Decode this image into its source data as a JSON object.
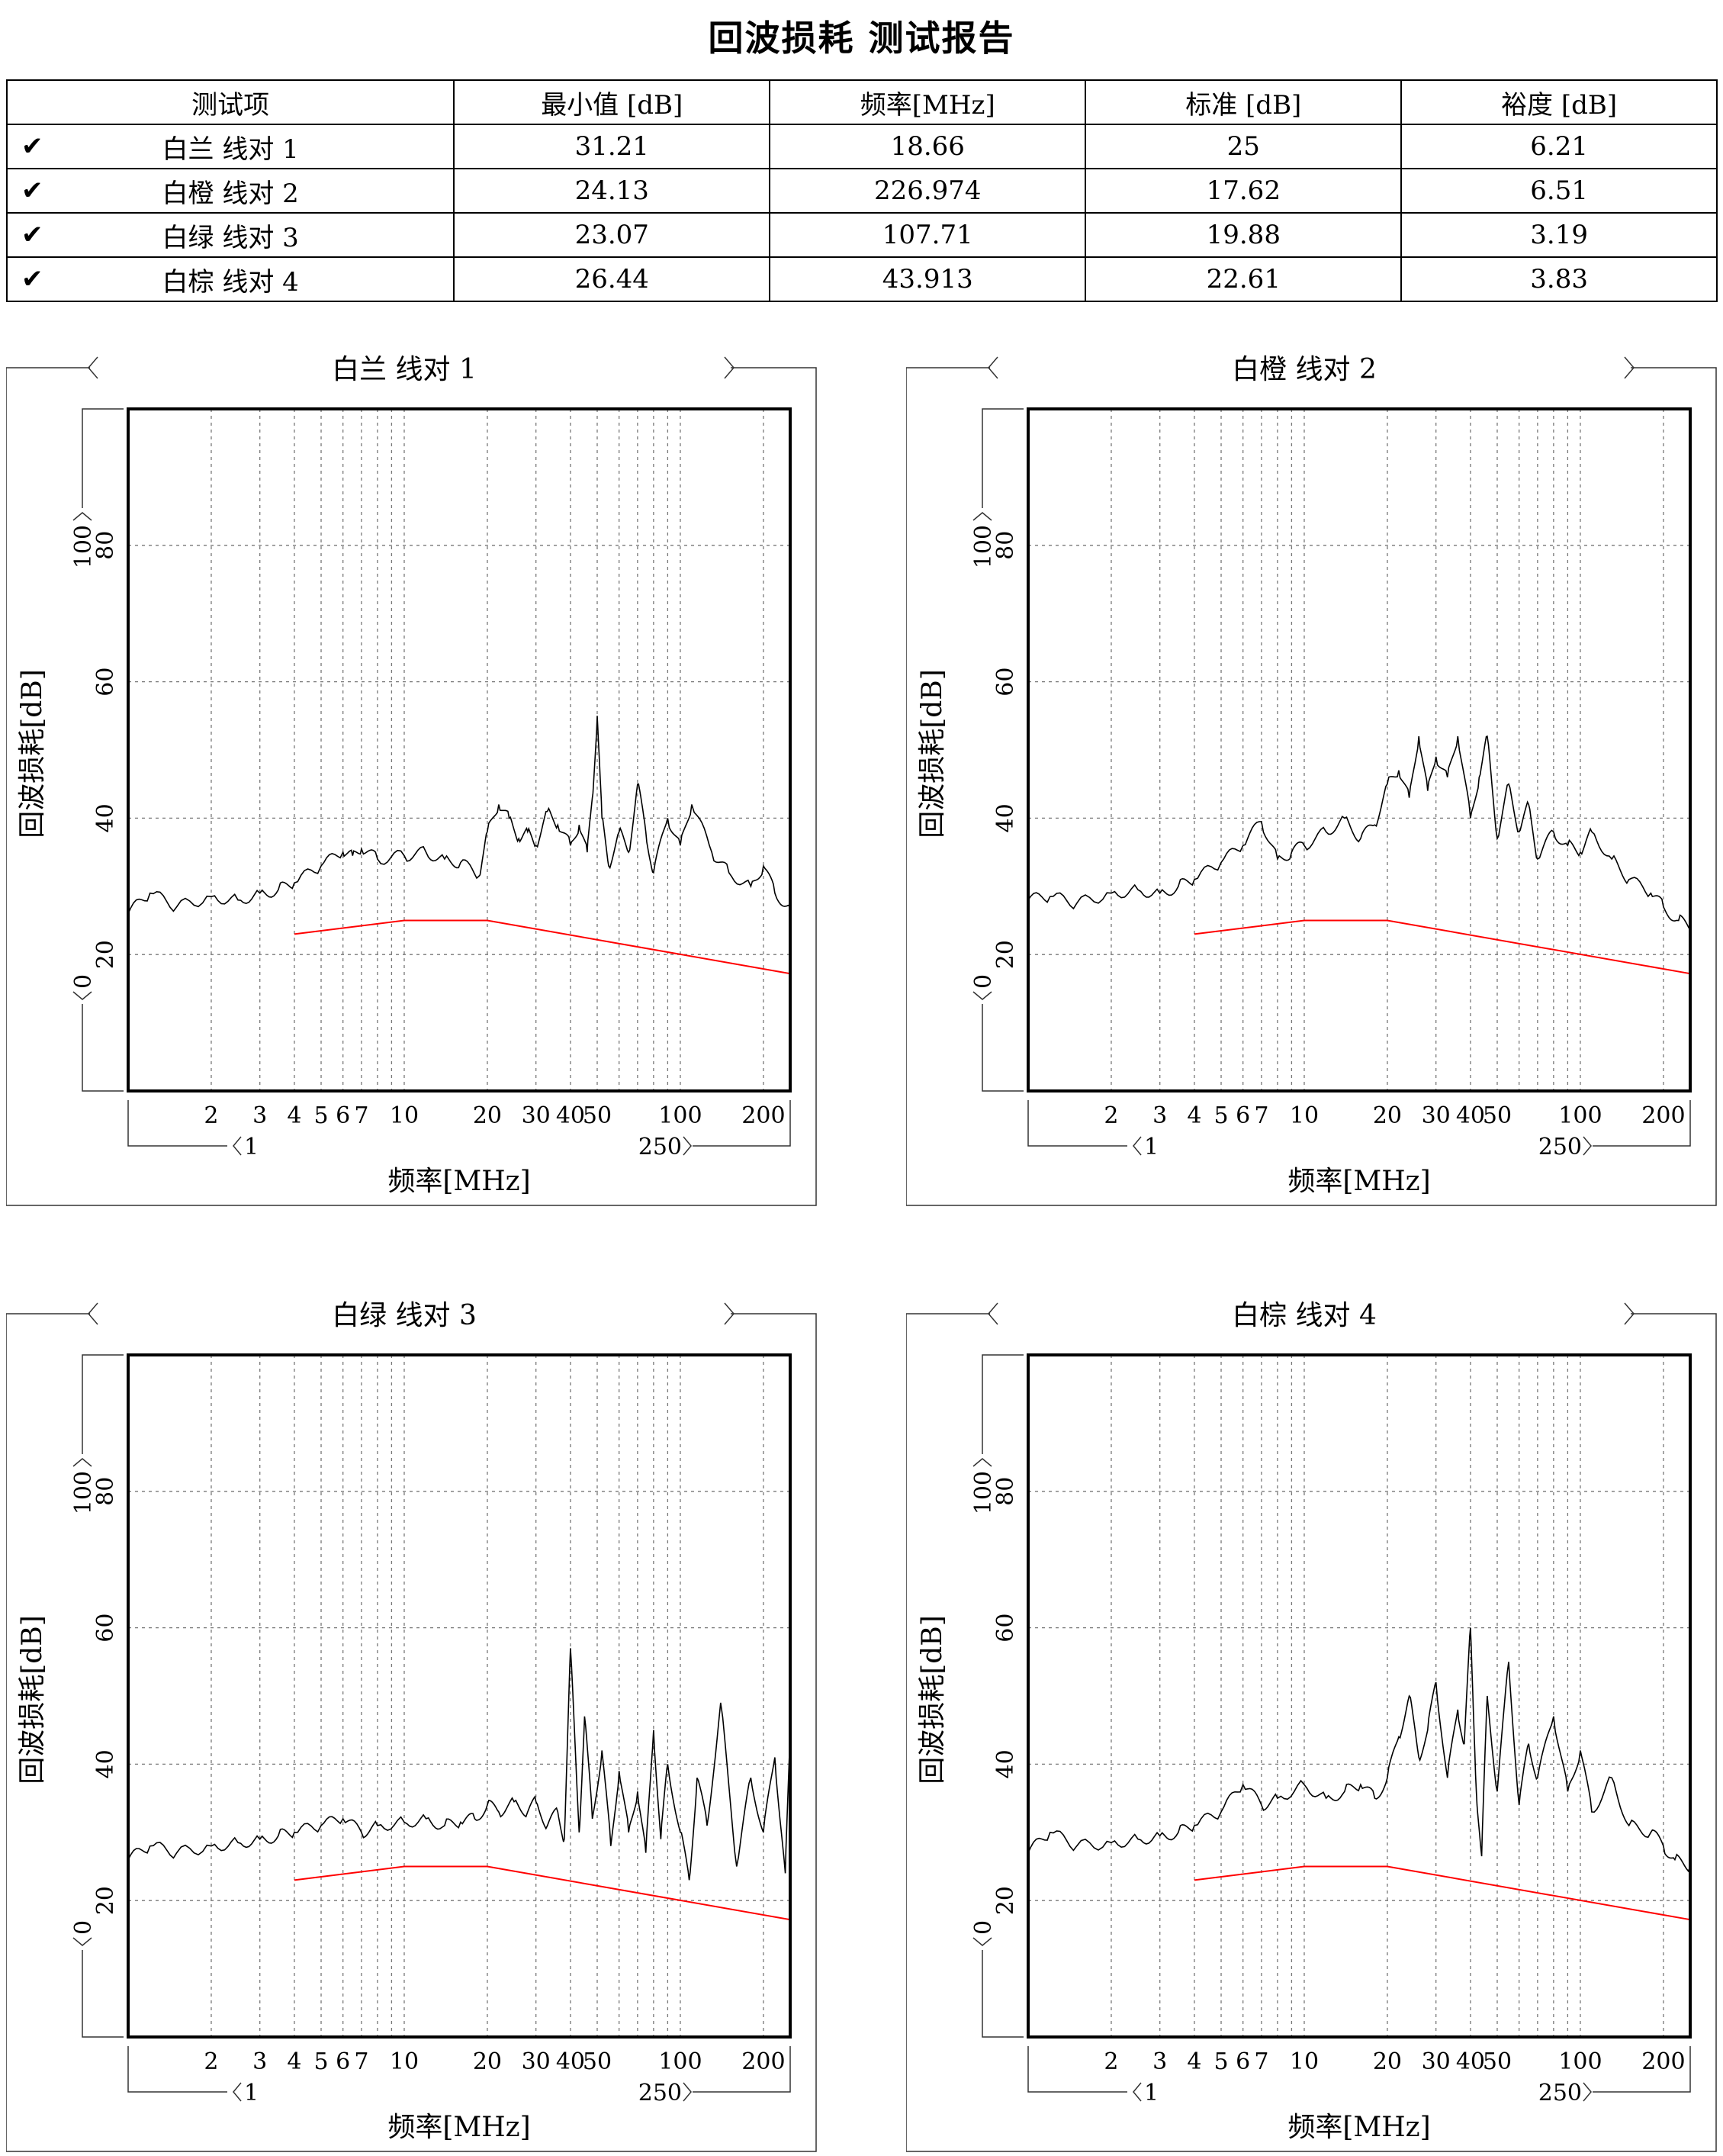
{
  "report": {
    "title": "回波损耗 测试报告"
  },
  "table": {
    "headers": [
      "测试项",
      "最小值 [dB]",
      "频率[MHz]",
      "标准 [dB]",
      "裕度 [dB]"
    ],
    "rows": [
      {
        "status": "✔",
        "item": "白兰 线对 1",
        "min": "31.21",
        "freq": "18.66",
        "std": "25",
        "margin": "6.21"
      },
      {
        "status": "✔",
        "item": "白橙 线对 2",
        "min": "24.13",
        "freq": "226.974",
        "std": "17.62",
        "margin": "6.51"
      },
      {
        "status": "✔",
        "item": "白绿 线对 3",
        "min": "23.07",
        "freq": "107.71",
        "std": "19.88",
        "margin": "3.19"
      },
      {
        "status": "✔",
        "item": "白棕 线对 4",
        "min": "26.44",
        "freq": "43.913",
        "std": "22.61",
        "margin": "3.83"
      }
    ]
  },
  "axis_text": {
    "ylabel": "回波损耗[dB]",
    "xlabel": "频率[MHz]",
    "y_max_marker": "100",
    "y_min_marker": "0",
    "x_min_marker": "1",
    "x_max_marker": "250"
  },
  "colors": {
    "measured": "#000000",
    "limit": "#ff0000",
    "grid": "#777777"
  },
  "chart_data": [
    {
      "type": "line",
      "title": "白兰 线对 1",
      "xlabel": "频率[MHz]",
      "ylabel": "回波损耗[dB]",
      "xscale": "log",
      "xlim": [
        1,
        250
      ],
      "ylim": [
        0,
        100
      ],
      "xticks": [
        2,
        3,
        4,
        5,
        6,
        7,
        10,
        20,
        30,
        40,
        50,
        100,
        200
      ],
      "yticks": [
        20,
        40,
        60,
        80
      ],
      "grid": true,
      "series": [
        {
          "role": "measured",
          "x": [
            1,
            1.2,
            1.5,
            2,
            2.5,
            3,
            3.5,
            4,
            5,
            6,
            6.5,
            7,
            8,
            10,
            12,
            14,
            16,
            18.66,
            20,
            22,
            24,
            26,
            28,
            30,
            33,
            36,
            40,
            43,
            46,
            48,
            50,
            52,
            55,
            60,
            65,
            70,
            75,
            80,
            90,
            100,
            110,
            130,
            150,
            180,
            200,
            220,
            250
          ],
          "y": [
            26,
            29,
            27,
            28.5,
            28,
            29,
            29.5,
            30.5,
            33,
            35,
            34.5,
            35.5,
            34,
            34.5,
            35,
            34,
            33.5,
            31.5,
            38,
            42,
            40,
            37,
            38,
            36,
            41,
            39,
            36,
            39,
            35,
            43,
            55,
            40,
            33,
            38,
            35,
            45,
            38,
            32,
            40,
            36,
            42,
            35,
            32,
            30,
            33,
            29,
            27
          ]
        },
        {
          "role": "limit",
          "x": [
            4,
            10,
            20,
            250
          ],
          "y": [
            23,
            25,
            25,
            17.2
          ]
        }
      ]
    },
    {
      "type": "line",
      "title": "白橙 线对 2",
      "xlabel": "频率[MHz]",
      "ylabel": "回波损耗[dB]",
      "xscale": "log",
      "xlim": [
        1,
        250
      ],
      "ylim": [
        0,
        100
      ],
      "xticks": [
        2,
        3,
        4,
        5,
        6,
        7,
        10,
        20,
        30,
        40,
        50,
        100,
        200
      ],
      "yticks": [
        20,
        40,
        60,
        80
      ],
      "grid": true,
      "series": [
        {
          "role": "measured",
          "x": [
            1,
            1.2,
            1.5,
            2,
            2.5,
            3,
            3.5,
            4,
            5,
            6,
            7,
            8,
            9,
            10,
            12,
            14,
            16,
            18,
            20,
            22,
            24,
            26,
            28,
            30,
            33,
            36,
            40,
            43,
            46,
            50,
            55,
            60,
            65,
            70,
            80,
            90,
            100,
            110,
            130,
            150,
            180,
            200,
            226.974,
            250
          ],
          "y": [
            28,
            28.5,
            27.5,
            29,
            29.5,
            29,
            30,
            31,
            33.5,
            36,
            39.5,
            34,
            35,
            36,
            38,
            40,
            37,
            39,
            45,
            47,
            43,
            52,
            44,
            49,
            46,
            52,
            40,
            46,
            52,
            37,
            45,
            38,
            42,
            34,
            38,
            36,
            35,
            38,
            34,
            31,
            29,
            27,
            25,
            24
          ]
        },
        {
          "role": "limit",
          "x": [
            4,
            10,
            20,
            250
          ],
          "y": [
            23,
            25,
            25,
            17.2
          ]
        }
      ]
    },
    {
      "type": "line",
      "title": "白绿 线对 3",
      "xlabel": "频率[MHz]",
      "ylabel": "回波损耗[dB]",
      "xscale": "log",
      "xlim": [
        1,
        250
      ],
      "ylim": [
        0,
        100
      ],
      "xticks": [
        2,
        3,
        4,
        5,
        6,
        7,
        10,
        20,
        30,
        40,
        50,
        100,
        200
      ],
      "yticks": [
        20,
        40,
        60,
        80
      ],
      "grid": true,
      "series": [
        {
          "role": "measured",
          "x": [
            1,
            1.2,
            1.5,
            2,
            2.5,
            3,
            3.5,
            4,
            5,
            6,
            7,
            8,
            10,
            12,
            14,
            16,
            18,
            20,
            22,
            25,
            28,
            30,
            33,
            36,
            38,
            40,
            43,
            45,
            48,
            52,
            56,
            60,
            65,
            70,
            75,
            80,
            85,
            90,
            100,
            107.71,
            115,
            125,
            140,
            160,
            180,
            200,
            220,
            240,
            250
          ],
          "y": [
            26,
            28,
            27,
            28,
            28.5,
            29,
            29.5,
            30,
            31,
            32,
            30,
            31,
            31.5,
            32,
            31,
            31.5,
            32,
            34,
            33,
            34.5,
            33,
            34.5,
            31,
            33,
            29,
            57,
            30,
            47,
            32,
            42,
            28,
            39,
            30,
            36,
            27,
            45,
            29,
            40,
            30,
            23,
            38,
            31,
            49,
            25,
            38,
            30,
            41,
            24,
            44
          ]
        },
        {
          "role": "limit",
          "x": [
            4,
            10,
            20,
            250
          ],
          "y": [
            23,
            25,
            25,
            17.2
          ]
        }
      ]
    },
    {
      "type": "line",
      "title": "白棕 线对 4",
      "xlabel": "频率[MHz]",
      "ylabel": "回波损耗[dB]",
      "xscale": "log",
      "xlim": [
        1,
        250
      ],
      "ylim": [
        0,
        100
      ],
      "xticks": [
        2,
        3,
        4,
        5,
        6,
        7,
        10,
        20,
        30,
        40,
        50,
        100,
        200
      ],
      "yticks": [
        20,
        40,
        60,
        80
      ],
      "grid": true,
      "series": [
        {
          "role": "measured",
          "x": [
            1,
            1.2,
            1.5,
            2,
            2.5,
            3,
            3.5,
            4,
            5,
            6,
            7,
            8,
            10,
            12,
            14,
            16,
            18,
            20,
            22,
            24,
            26,
            28,
            30,
            33,
            36,
            38,
            40,
            42,
            43.913,
            46,
            50,
            55,
            60,
            65,
            70,
            80,
            90,
            100,
            110,
            130,
            150,
            180,
            200,
            220,
            250
          ],
          "y": [
            27,
            30,
            28,
            28.5,
            29,
            29.5,
            30,
            31,
            33,
            37,
            34,
            35,
            37,
            35,
            36,
            37,
            35,
            38,
            44,
            50,
            41,
            45,
            52,
            38,
            48,
            43,
            60,
            36,
            26.5,
            50,
            36,
            55,
            34,
            43,
            38,
            47,
            36,
            42,
            33,
            38,
            31,
            30,
            28,
            26,
            25
          ]
        },
        {
          "role": "limit",
          "x": [
            4,
            10,
            20,
            250
          ],
          "y": [
            23,
            25,
            25,
            17.2
          ]
        }
      ]
    }
  ]
}
